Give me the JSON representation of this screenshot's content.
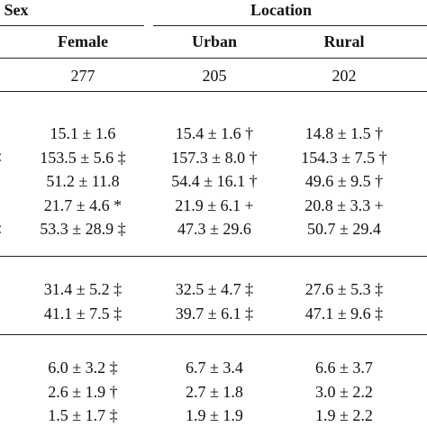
{
  "header": {
    "groups": [
      "Sex",
      "Location"
    ],
    "columns": [
      "Female",
      "Urban",
      "Rural"
    ],
    "counts": [
      "277",
      "205",
      "202"
    ]
  },
  "edge_marks": [
    "‡",
    "‡"
  ],
  "groups": [
    [
      [
        "15.1 ± 1.6",
        "15.4 ± 1.6 †",
        "14.8 ± 1.5 †"
      ],
      [
        "153.5 ± 5.6 ‡",
        "157.3 ± 8.0 †",
        "154.3 ± 7.5 †"
      ],
      [
        "51.2 ± 11.8",
        "54.4 ± 16.1 †",
        "49.6 ± 9.5 †"
      ],
      [
        "21.7 ± 4.6 *",
        "21.9 ± 6.1 +",
        "20.8 ± 3.3 +"
      ],
      [
        "53.3 ± 28.9 ‡",
        "47.3 ± 29.6",
        "50.7 ± 29.4"
      ]
    ],
    [
      [
        "31.4 ± 5.2 ‡",
        "32.5 ± 4.7 ‡",
        "27.6 ± 5.3 ‡"
      ],
      [
        "41.1 ± 7.5 ‡",
        "39.7 ± 6.1 ‡",
        "47.1 ± 9.6 ‡"
      ]
    ],
    [
      [
        "6.0 ± 3.2 ‡",
        "6.7 ± 3.4",
        "6.6 ± 3.7"
      ],
      [
        "2.6 ± 1.9 †",
        "2.7 ± 1.8",
        "3.0 ± 2.2"
      ],
      [
        "1.5 ± 1.7 ‡",
        "1.9 ± 1.9",
        "1.9 ± 2.2"
      ]
    ]
  ]
}
